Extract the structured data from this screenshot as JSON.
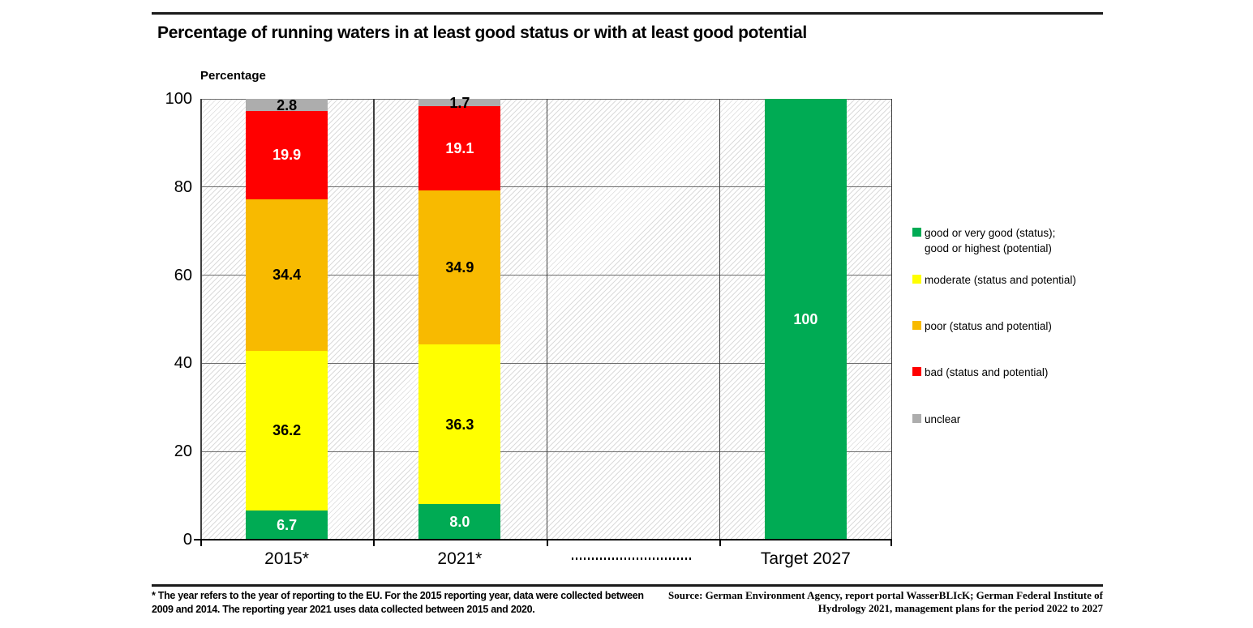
{
  "title": "Percentage of running waters in at least good status or with at least good potential",
  "axis_title": "Percentage",
  "chart_data": {
    "type": "bar",
    "stacked": true,
    "categories": [
      "2015*",
      "2021*",
      "",
      "Target 2027"
    ],
    "third_slot_marker": "dotted-line",
    "series": [
      {
        "name": "good or very good (status); good or highest (potential)",
        "color": "#00AB54",
        "label_color": "#ffffff",
        "values": [
          6.7,
          8.0,
          null,
          100
        ],
        "value_labels": [
          "6.7",
          "8.0",
          "",
          "100"
        ]
      },
      {
        "name": "moderate (status and potential)",
        "color": "#FFFF00",
        "label_color": "#000000",
        "values": [
          36.2,
          36.3,
          null,
          null
        ],
        "value_labels": [
          "36.2",
          "36.3",
          "",
          ""
        ]
      },
      {
        "name": "poor (status and potential)",
        "color": "#F8BA00",
        "label_color": "#000000",
        "values": [
          34.4,
          34.9,
          null,
          null
        ],
        "value_labels": [
          "34.4",
          "34.9",
          "",
          ""
        ]
      },
      {
        "name": "bad (status and potential)",
        "color": "#FF0000",
        "label_color": "#ffffff",
        "values": [
          19.9,
          19.1,
          null,
          null
        ],
        "value_labels": [
          "19.9",
          "19.1",
          "",
          ""
        ]
      },
      {
        "name": "unclear",
        "color": "#ADADAD",
        "label_color": "#000000",
        "values": [
          2.8,
          1.7,
          null,
          null
        ],
        "value_labels": [
          "2.8",
          "1.7",
          "",
          ""
        ]
      }
    ],
    "ylim": [
      0,
      100
    ],
    "yticks": [
      0,
      20,
      40,
      60,
      80,
      100
    ],
    "grid": true,
    "legend_position": "right",
    "background_pattern": "diagonal-hatch"
  },
  "legend": {
    "items": [
      {
        "color": "#00AB54",
        "lines": [
          "good or very good (status);",
          "good or highest (potential)"
        ]
      },
      {
        "color": "#FFFF00",
        "lines": [
          "moderate (status and potential)"
        ]
      },
      {
        "color": "#F8BA00",
        "lines": [
          "poor (status and potential)"
        ]
      },
      {
        "color": "#FF0000",
        "lines": [
          "bad (status and potential)"
        ]
      },
      {
        "color": "#ADADAD",
        "lines": [
          "unclear"
        ]
      }
    ]
  },
  "footnote": {
    "line1": "* The year refers to the year of reporting to the EU. For the 2015 reporting year, data were collected between",
    "line2": "2009 and 2014. The reporting year 2021 uses data collected between 2015 and 2020."
  },
  "source": {
    "line1": "Source: German Environment Agency, report portal WasserBLIcK; German Federal Institute of",
    "line2": "Hydrology 2021, management plans for the period 2022 to 2027"
  },
  "colors": {
    "good": "#00AB54",
    "moderate": "#FFFF00",
    "poor": "#F8BA00",
    "bad": "#FF0000",
    "unclear": "#ADADAD",
    "hgrid": "#6e6e6e",
    "vgrid": "#3f3f3f",
    "axis": "#000000"
  }
}
